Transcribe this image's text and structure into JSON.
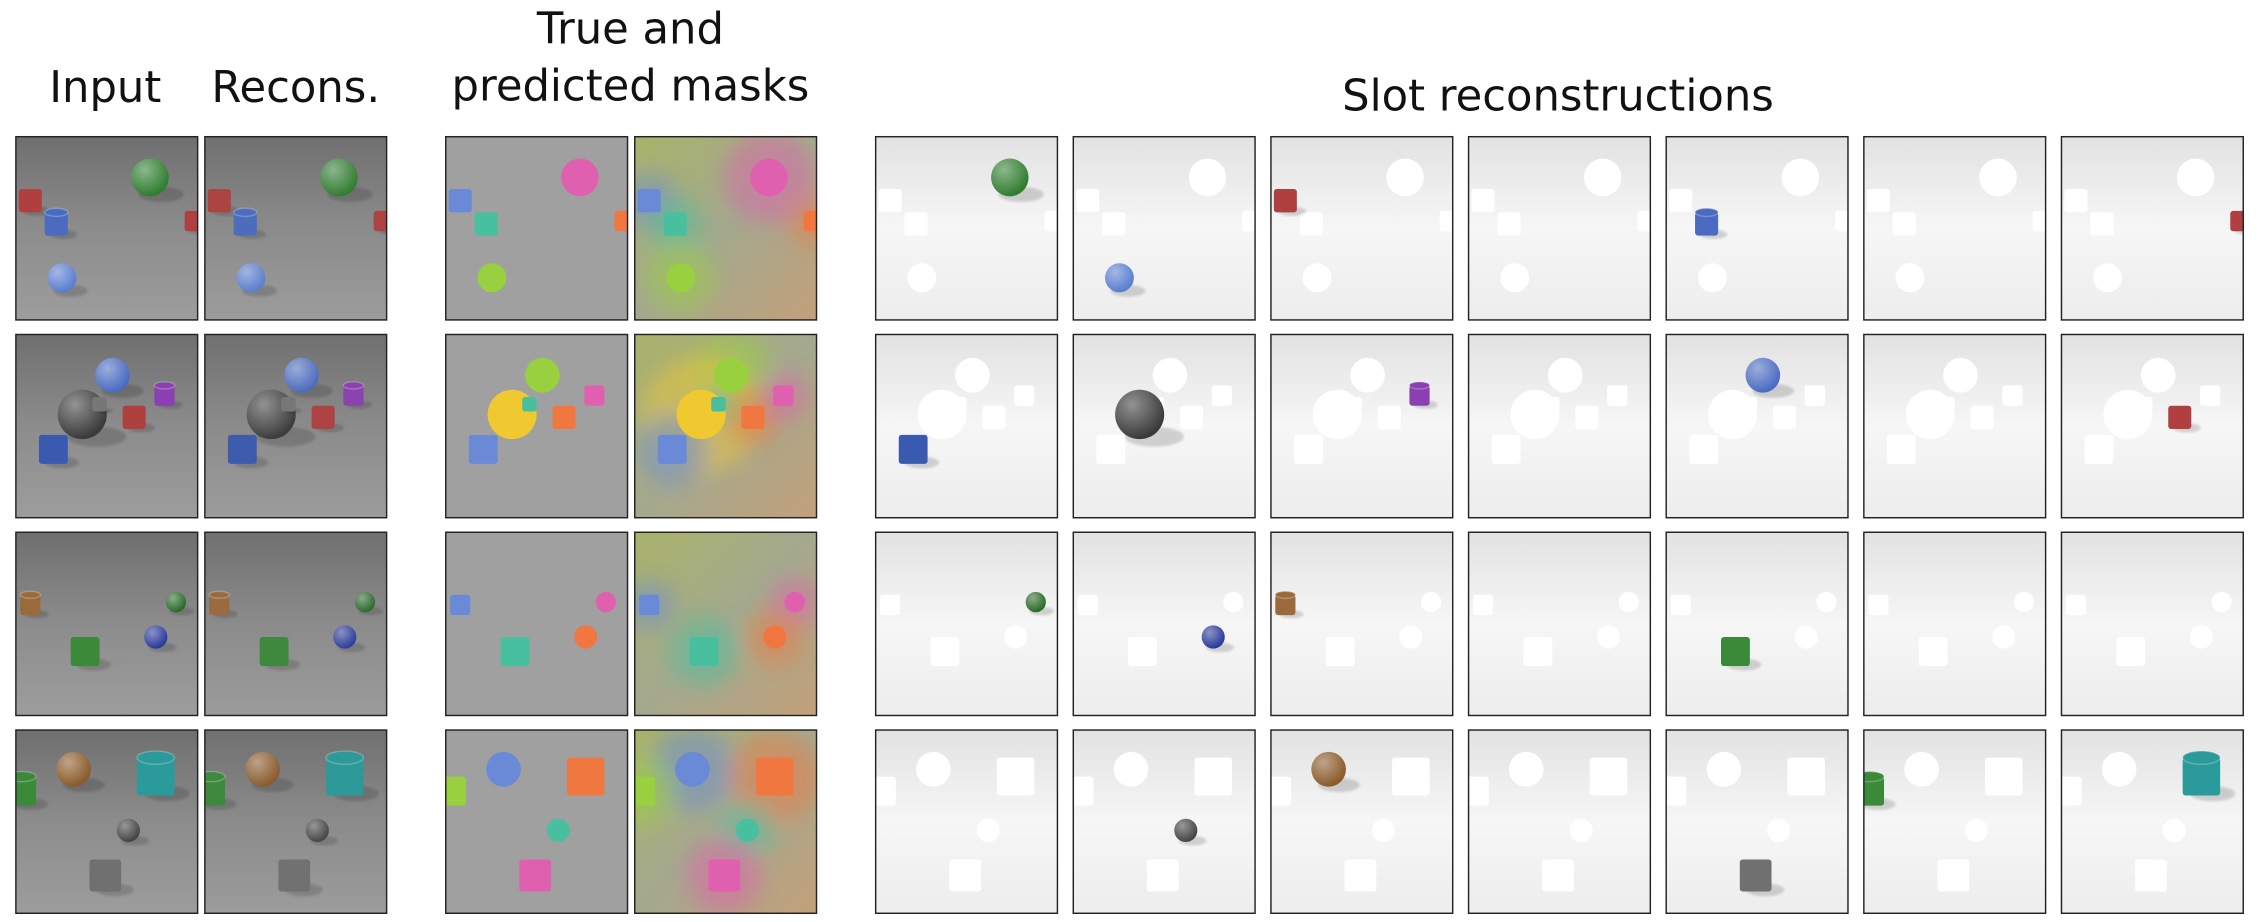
{
  "header": {
    "input": "Input",
    "recons": "Recons.",
    "masks": [
      "True and",
      "predicted masks"
    ],
    "slots": "Slot reconstructions"
  }
}
